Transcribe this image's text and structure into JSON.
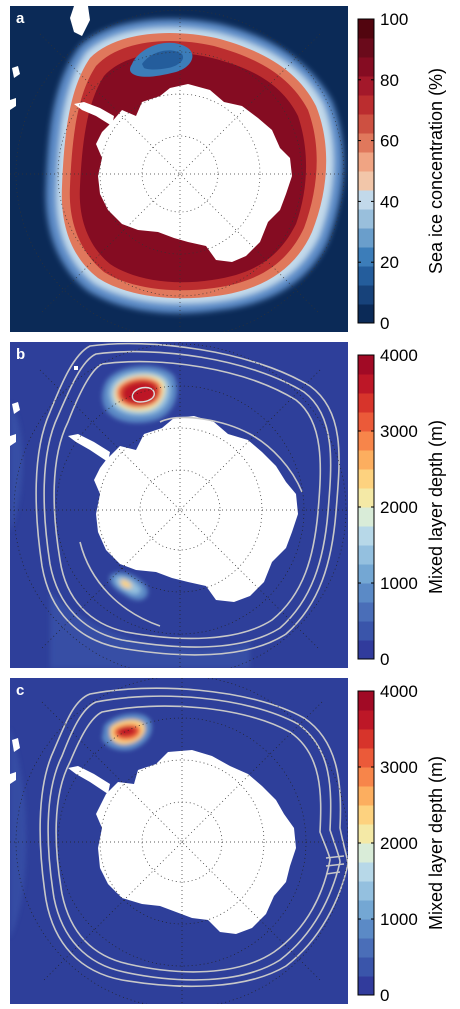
{
  "chart_data": [
    {
      "type": "heatmap",
      "panel_label": "a",
      "colorbar_label": "Sea ice concentration (%)",
      "colorbar_ticks": [
        0,
        20,
        40,
        60,
        80,
        100
      ],
      "colorbar_range": [
        0,
        100
      ],
      "colorbar_levels": 16,
      "palette": [
        "#0b2a57",
        "#17427a",
        "#245d9c",
        "#3c7db9",
        "#6a9ecb",
        "#99bfdc",
        "#c2d9ea",
        "#f2c6a9",
        "#f0a483",
        "#e0785c",
        "#cd5041",
        "#bb2d2f",
        "#a3182a",
        "#850c22",
        "#6a0a1b",
        "#52050f"
      ],
      "background_color": "#0b2a57",
      "land_color": "#ffffff",
      "projection": "south-polar-stereographic"
    },
    {
      "type": "heatmap",
      "panel_label": "b",
      "colorbar_label": "Mixed layer depth (m)",
      "colorbar_ticks": [
        0,
        1000,
        2000,
        3000,
        4000
      ],
      "colorbar_range": [
        0,
        4000
      ],
      "colorbar_levels": 16,
      "palette": [
        "#313b9c",
        "#3a55aa",
        "#4a6eb8",
        "#5b8ac6",
        "#74a7d3",
        "#94c0df",
        "#b7d8e8",
        "#d9ecd8",
        "#f4e9a6",
        "#fdd27f",
        "#fcae5f",
        "#f7854a",
        "#eb5a39",
        "#d7342b",
        "#bd1727",
        "#a10a25"
      ],
      "background_color": "#2e3f9a",
      "land_color": "#ffffff",
      "contour_color": "#c8c8c8",
      "projection": "south-polar-stereographic"
    },
    {
      "type": "heatmap",
      "panel_label": "c",
      "colorbar_label": "Mixed layer depth (m)",
      "colorbar_ticks": [
        0,
        1000,
        2000,
        3000,
        4000
      ],
      "colorbar_range": [
        0,
        4000
      ],
      "colorbar_levels": 16,
      "palette": [
        "#313b9c",
        "#3a55aa",
        "#4a6eb8",
        "#5b8ac6",
        "#74a7d3",
        "#94c0df",
        "#b7d8e8",
        "#d9ecd8",
        "#f4e9a6",
        "#fdd27f",
        "#fcae5f",
        "#f7854a",
        "#eb5a39",
        "#d7342b",
        "#bd1727",
        "#a10a25"
      ],
      "background_color": "#2e3f9a",
      "land_color": "#ffffff",
      "contour_color": "#c8c8c8",
      "projection": "south-polar-stereographic"
    }
  ]
}
